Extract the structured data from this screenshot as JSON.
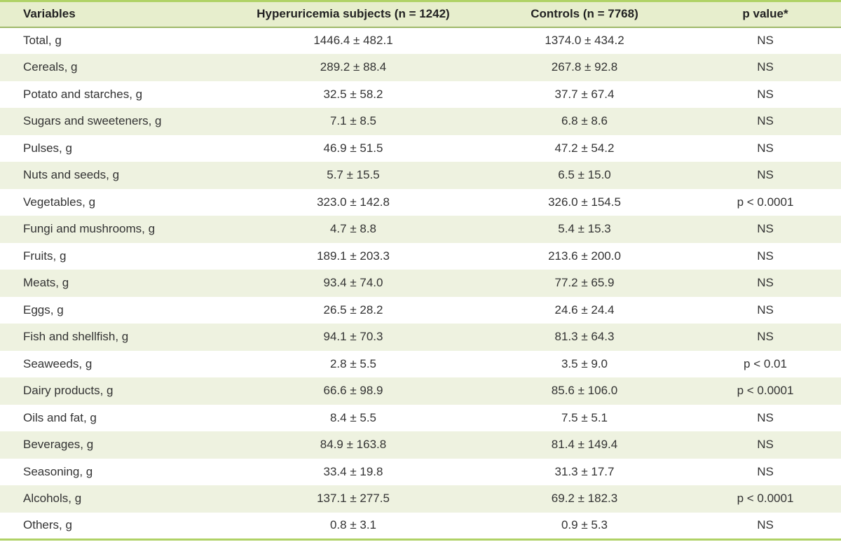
{
  "table": {
    "headers": [
      "Variables",
      "Hyperuricemia subjects (n = 1242)",
      "Controls (n = 7768)",
      "p value*"
    ],
    "rows": [
      [
        "Total, g",
        "1446.4 ± 482.1",
        "1374.0 ± 434.2",
        "NS"
      ],
      [
        "Cereals, g",
        "289.2 ± 88.4",
        "267.8 ± 92.8",
        "NS"
      ],
      [
        "Potato and starches, g",
        "32.5 ± 58.2",
        "37.7 ± 67.4",
        "NS"
      ],
      [
        "Sugars and sweeteners, g",
        "7.1 ± 8.5",
        "6.8 ± 8.6",
        "NS"
      ],
      [
        "Pulses, g",
        "46.9 ± 51.5",
        "47.2 ± 54.2",
        "NS"
      ],
      [
        "Nuts and seeds, g",
        "5.7 ± 15.5",
        "6.5 ± 15.0",
        "NS"
      ],
      [
        "Vegetables, g",
        "323.0 ± 142.8",
        "326.0 ± 154.5",
        "p < 0.0001"
      ],
      [
        "Fungi and mushrooms, g",
        "4.7 ± 8.8",
        "5.4 ± 15.3",
        "NS"
      ],
      [
        "Fruits, g",
        "189.1 ± 203.3",
        "213.6 ± 200.0",
        "NS"
      ],
      [
        "Meats, g",
        "93.4 ± 74.0",
        "77.2 ± 65.9",
        "NS"
      ],
      [
        "Eggs, g",
        "26.5 ± 28.2",
        "24.6 ± 24.4",
        "NS"
      ],
      [
        "Fish and shellfish, g",
        "94.1 ± 70.3",
        "81.3 ± 64.3",
        "NS"
      ],
      [
        "Seaweeds, g",
        "2.8 ± 5.5",
        "3.5 ± 9.0",
        "p < 0.01"
      ],
      [
        "Dairy products, g",
        "66.6 ± 98.9",
        "85.6 ± 106.0",
        "p < 0.0001"
      ],
      [
        "Oils and fat, g",
        "8.4 ± 5.5",
        "7.5 ± 5.1",
        "NS"
      ],
      [
        "Beverages, g",
        "84.9 ± 163.8",
        "81.4 ± 149.4",
        "NS"
      ],
      [
        "Seasoning, g",
        "33.4 ± 19.8",
        "31.3 ± 17.7",
        "NS"
      ],
      [
        "Alcohols, g",
        "137.1 ± 277.5",
        "69.2 ± 182.3",
        "p < 0.0001"
      ],
      [
        "Others, g",
        "0.8 ± 3.1",
        "0.9 ± 5.3",
        "NS"
      ]
    ]
  },
  "colors": {
    "border_accent": "#b0d266",
    "header_bg": "#e7eecd",
    "header_rule": "#9fb869",
    "stripe_bg": "#eef2e0",
    "text": "#333333"
  }
}
